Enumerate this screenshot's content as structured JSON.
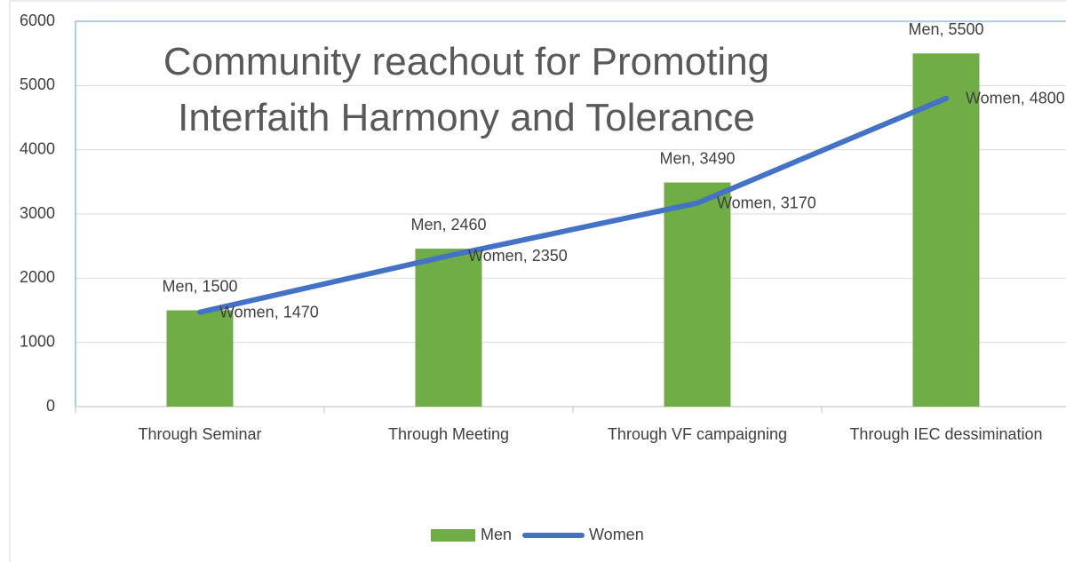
{
  "chart_data": {
    "type": "bar-line",
    "title": "Community reachout for Promoting Interfaith Harmony and Tolerance",
    "categories": [
      "Through Seminar",
      "Through Meeting",
      "Through VF campaigning",
      "Through IEC dessimination"
    ],
    "series": [
      {
        "name": "Men",
        "type": "bar",
        "color": "#70ad47",
        "values": [
          1500,
          2460,
          3490,
          5500
        ],
        "value_labels": [
          "Men, 1500",
          "Men, 2460",
          "Men, 3490",
          "Men, 5500"
        ]
      },
      {
        "name": "Women",
        "type": "line",
        "color": "#4472c4",
        "values": [
          1470,
          2350,
          3170,
          4800
        ],
        "value_labels": [
          "Women, 1470",
          "Women, 2350",
          "Women, 3170",
          "Women, 4800"
        ]
      }
    ],
    "ylim": [
      0,
      6000
    ],
    "yticks": [
      0,
      1000,
      2000,
      3000,
      4000,
      5000,
      6000
    ],
    "grid": true,
    "legend": "bottom"
  }
}
